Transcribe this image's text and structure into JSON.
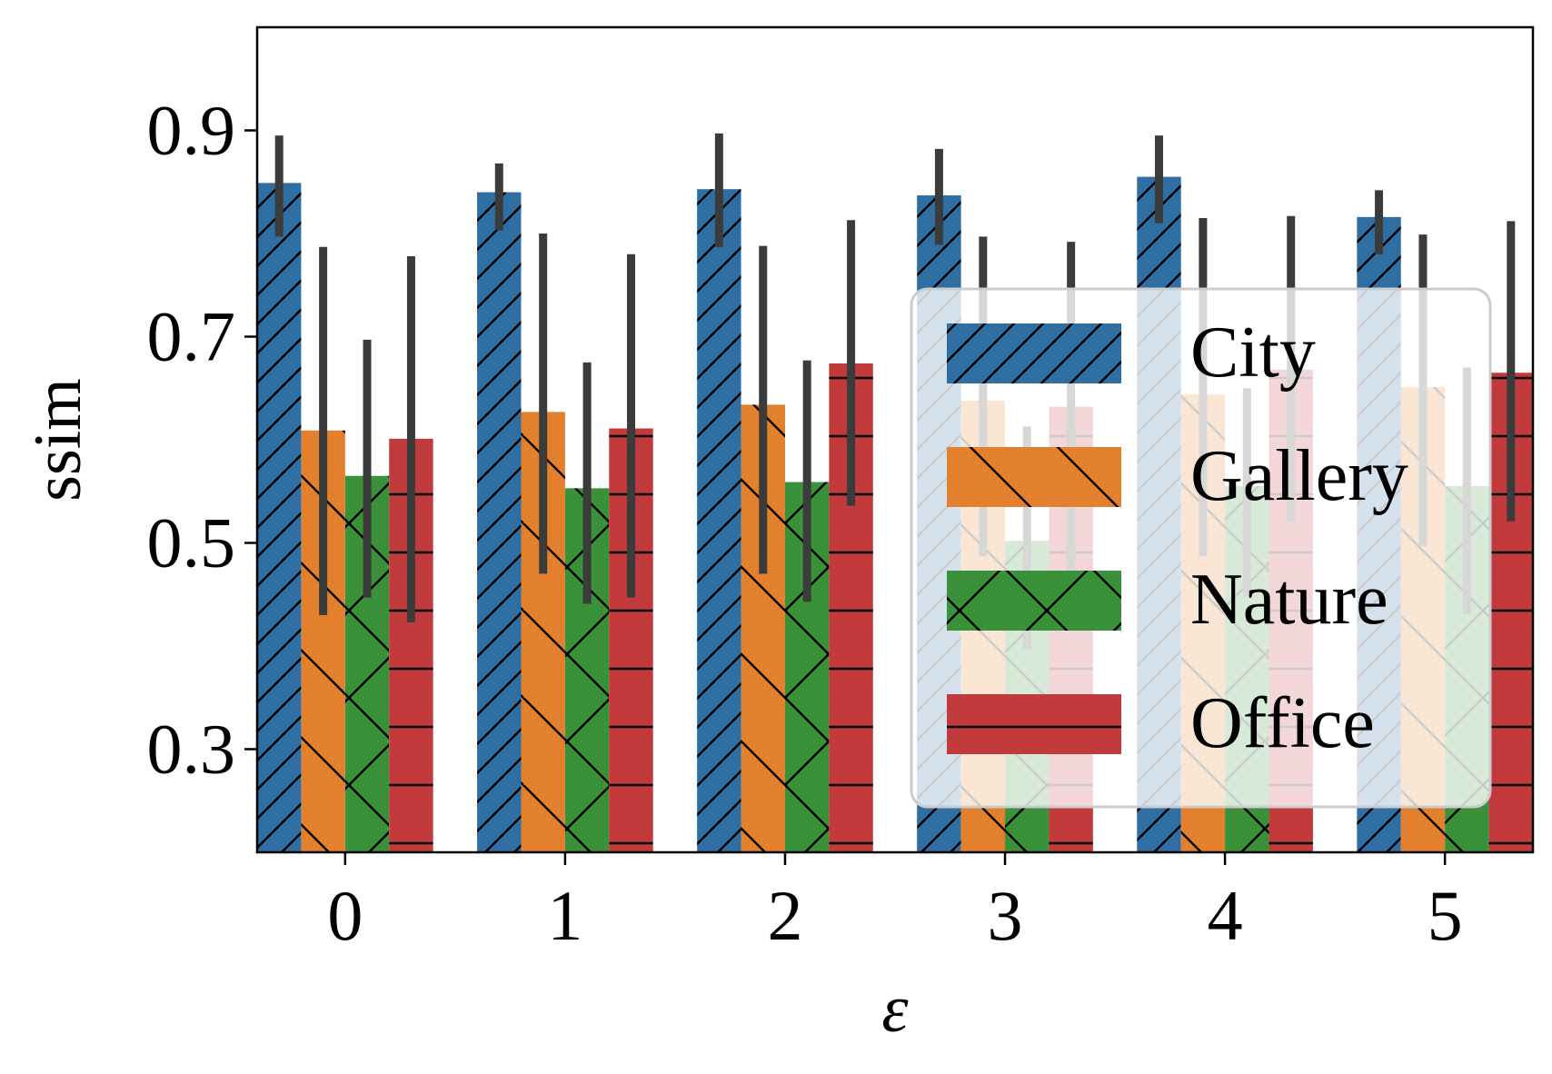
{
  "chart_data": {
    "type": "bar",
    "title": "",
    "xlabel": "ε",
    "ylabel": "ssim",
    "categories": [
      "0",
      "1",
      "2",
      "3",
      "4",
      "5"
    ],
    "ylim": [
      0.2,
      1.0
    ],
    "yticks": [
      "0.3",
      "0.5",
      "0.7",
      "0.9"
    ],
    "grid": false,
    "legend_position": "center-right",
    "series": [
      {
        "name": "City",
        "color": "#2f6ea3",
        "hatch": "forward-diagonal",
        "values": [
          0.849,
          0.84,
          0.843,
          0.837,
          0.855,
          0.816
        ],
        "err_low": [
          0.797,
          0.803,
          0.787,
          0.789,
          0.81,
          0.78
        ],
        "err_high": [
          0.895,
          0.868,
          0.897,
          0.882,
          0.895,
          0.842
        ]
      },
      {
        "name": "Gallery",
        "color": "#e2802d",
        "hatch": "back-diagonal",
        "values": [
          0.609,
          0.627,
          0.634,
          0.638,
          0.644,
          0.651
        ],
        "err_low": [
          0.43,
          0.47,
          0.47,
          0.487,
          0.487,
          0.497
        ],
        "err_high": [
          0.787,
          0.8,
          0.788,
          0.797,
          0.815,
          0.799
        ]
      },
      {
        "name": "Nature",
        "color": "#3a913a",
        "hatch": "crosshatch",
        "values": [
          0.565,
          0.553,
          0.559,
          0.502,
          0.555,
          0.555
        ],
        "err_low": [
          0.447,
          0.441,
          0.443,
          0.397,
          0.448,
          0.431
        ],
        "err_high": [
          0.697,
          0.675,
          0.677,
          0.613,
          0.65,
          0.67
        ]
      },
      {
        "name": "Office",
        "color": "#c13b3c",
        "hatch": "horizontal",
        "values": [
          0.601,
          0.611,
          0.674,
          0.632,
          0.668,
          0.665
        ],
        "err_low": [
          0.423,
          0.447,
          0.536,
          0.462,
          0.521,
          0.521
        ],
        "err_high": [
          0.778,
          0.78,
          0.813,
          0.792,
          0.817,
          0.812
        ]
      }
    ]
  }
}
